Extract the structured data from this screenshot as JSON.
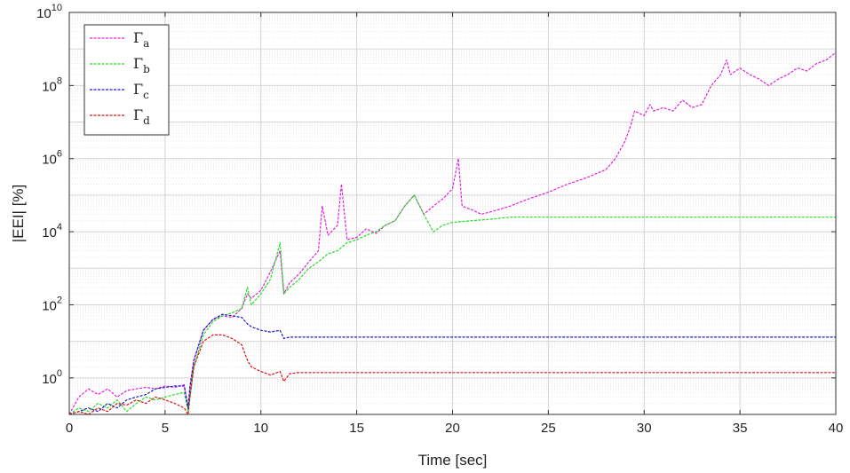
{
  "chart_data": {
    "type": "line",
    "xlabel": "Time [sec]",
    "ylabel": "|EEI| [%]",
    "xlim": [
      0,
      40
    ],
    "ylim": [
      0.1,
      10000000000
    ],
    "yscale": "log",
    "grid": true,
    "minor_grid": true,
    "legend_position": "top-left",
    "x_ticks": [
      0,
      5,
      10,
      15,
      20,
      25,
      30,
      35,
      40
    ],
    "x_tick_labels": [
      "0",
      "5",
      "10",
      "15",
      "20",
      "25",
      "30",
      "35",
      "40"
    ],
    "y_ticks": [
      1,
      100,
      10000,
      1000000,
      100000000,
      10000000000
    ],
    "y_tick_labels": [
      {
        "base": "10",
        "exp": "0"
      },
      {
        "base": "10",
        "exp": "2"
      },
      {
        "base": "10",
        "exp": "4"
      },
      {
        "base": "10",
        "exp": "6"
      },
      {
        "base": "10",
        "exp": "8"
      },
      {
        "base": "10",
        "exp": "10"
      }
    ],
    "series": [
      {
        "name": "Γa",
        "name_base": "Γ",
        "name_sub": "a",
        "color": "#e020e0",
        "x": [
          0,
          0.5,
          1,
          1.5,
          2,
          2.5,
          3,
          3.5,
          4,
          4.5,
          5,
          5.5,
          6,
          6.2,
          6.3,
          6.5,
          7,
          7.5,
          8,
          8.5,
          9,
          9.3,
          9.5,
          10,
          10.5,
          11,
          11.2,
          11.5,
          12,
          12.5,
          13,
          13.2,
          13.5,
          14,
          14.2,
          14.5,
          15,
          15.5,
          16,
          16.5,
          17,
          17.5,
          18,
          18.5,
          19,
          19.5,
          20,
          20.3,
          20.5,
          21,
          21.5,
          22,
          23,
          24,
          25,
          26,
          27,
          28,
          28.5,
          29,
          29.3,
          29.5,
          30,
          30.3,
          30.5,
          31,
          31.5,
          32,
          32.5,
          33,
          33.5,
          34,
          34.3,
          34.5,
          35,
          35.5,
          36,
          36.5,
          37,
          37.5,
          38,
          38.5,
          39,
          39.5,
          40
        ],
        "y": [
          0.1,
          0.3,
          0.5,
          0.35,
          0.5,
          0.3,
          0.45,
          0.5,
          0.55,
          0.5,
          0.6,
          0.55,
          0.65,
          0.15,
          0.5,
          3,
          20,
          40,
          50,
          45,
          80,
          200,
          150,
          250,
          800,
          3000,
          200,
          400,
          700,
          1500,
          3000,
          50000,
          8000,
          15000,
          200000,
          6000,
          7000,
          12000,
          9000,
          15000,
          20000,
          50000,
          100000,
          30000,
          50000,
          80000,
          150000,
          1000000,
          50000,
          40000,
          30000,
          35000,
          50000,
          80000,
          120000,
          200000,
          300000,
          500000,
          1000000,
          3000000,
          8000000,
          20000000,
          15000000,
          30000000,
          20000000,
          25000000,
          20000000,
          40000000,
          25000000,
          30000000,
          100000000,
          200000000,
          500000000,
          200000000,
          300000000,
          200000000,
          150000000,
          100000000,
          150000000,
          200000000,
          300000000,
          250000000,
          400000000,
          500000000,
          800000000
        ]
      },
      {
        "name": "Γb",
        "name_base": "Γ",
        "name_sub": "b",
        "color": "#22dd22",
        "x": [
          0,
          0.5,
          1,
          1.5,
          2,
          2.5,
          3,
          3.5,
          4,
          4.5,
          5,
          5.5,
          6,
          6.2,
          6.3,
          6.5,
          7,
          7.5,
          8,
          8.5,
          9,
          9.3,
          9.5,
          10,
          10.5,
          11,
          11.2,
          11.5,
          12,
          12.5,
          13,
          13.5,
          14,
          14.5,
          15,
          15.5,
          16,
          16.5,
          17,
          17.5,
          18,
          18.5,
          19,
          19.5,
          20,
          21,
          22,
          23,
          25,
          30,
          35,
          40
        ],
        "y": [
          0.1,
          0.15,
          0.12,
          0.2,
          0.15,
          0.25,
          0.12,
          0.2,
          0.3,
          0.25,
          0.3,
          0.35,
          0.4,
          0.12,
          0.3,
          2,
          15,
          35,
          50,
          60,
          80,
          300,
          100,
          200,
          500,
          5000,
          200,
          300,
          500,
          1000,
          1500,
          2500,
          3000,
          5000,
          6000,
          8000,
          10000,
          15000,
          20000,
          50000,
          100000,
          30000,
          10000,
          15000,
          18000,
          20000,
          22000,
          25000,
          25000,
          25000,
          25000,
          25000
        ]
      },
      {
        "name": "Γc",
        "name_base": "Γ",
        "name_sub": "c",
        "color": "#1a1acc",
        "x": [
          0,
          0.5,
          1,
          1.5,
          2,
          2.5,
          3,
          3.5,
          4,
          4.5,
          5,
          5.5,
          6,
          6.2,
          6.3,
          6.5,
          7,
          7.5,
          8,
          8.5,
          9,
          9.3,
          9.5,
          10,
          10.5,
          11,
          11.2,
          11.5,
          12,
          13,
          15,
          20,
          25,
          30,
          35,
          40
        ],
        "y": [
          0.1,
          0.12,
          0.15,
          0.12,
          0.2,
          0.15,
          0.25,
          0.3,
          0.35,
          0.5,
          0.55,
          0.6,
          0.6,
          0.15,
          0.6,
          3,
          20,
          40,
          55,
          50,
          45,
          30,
          25,
          20,
          18,
          20,
          12,
          13,
          13,
          13,
          13,
          13,
          13,
          13,
          13,
          13
        ]
      },
      {
        "name": "Γd",
        "name_base": "Γ",
        "name_sub": "d",
        "color": "#dd1111",
        "x": [
          0,
          0.5,
          1,
          1.5,
          2,
          2.5,
          3,
          3.5,
          4,
          4.5,
          5,
          5.5,
          6,
          6.2,
          6.3,
          6.5,
          7,
          7.5,
          8,
          8.5,
          9,
          9.3,
          9.5,
          10,
          10.5,
          11,
          11.2,
          11.5,
          12,
          13,
          15,
          20,
          25,
          30,
          35,
          40
        ],
        "y": [
          0.1,
          0.12,
          0.1,
          0.15,
          0.12,
          0.2,
          0.18,
          0.25,
          0.2,
          0.3,
          0.25,
          0.2,
          0.15,
          0.1,
          0.3,
          2,
          10,
          15,
          15,
          12,
          8,
          3,
          2,
          1.5,
          1.2,
          1.5,
          0.8,
          1.3,
          1.4,
          1.4,
          1.4,
          1.4,
          1.4,
          1.4,
          1.4,
          1.4
        ]
      }
    ]
  }
}
